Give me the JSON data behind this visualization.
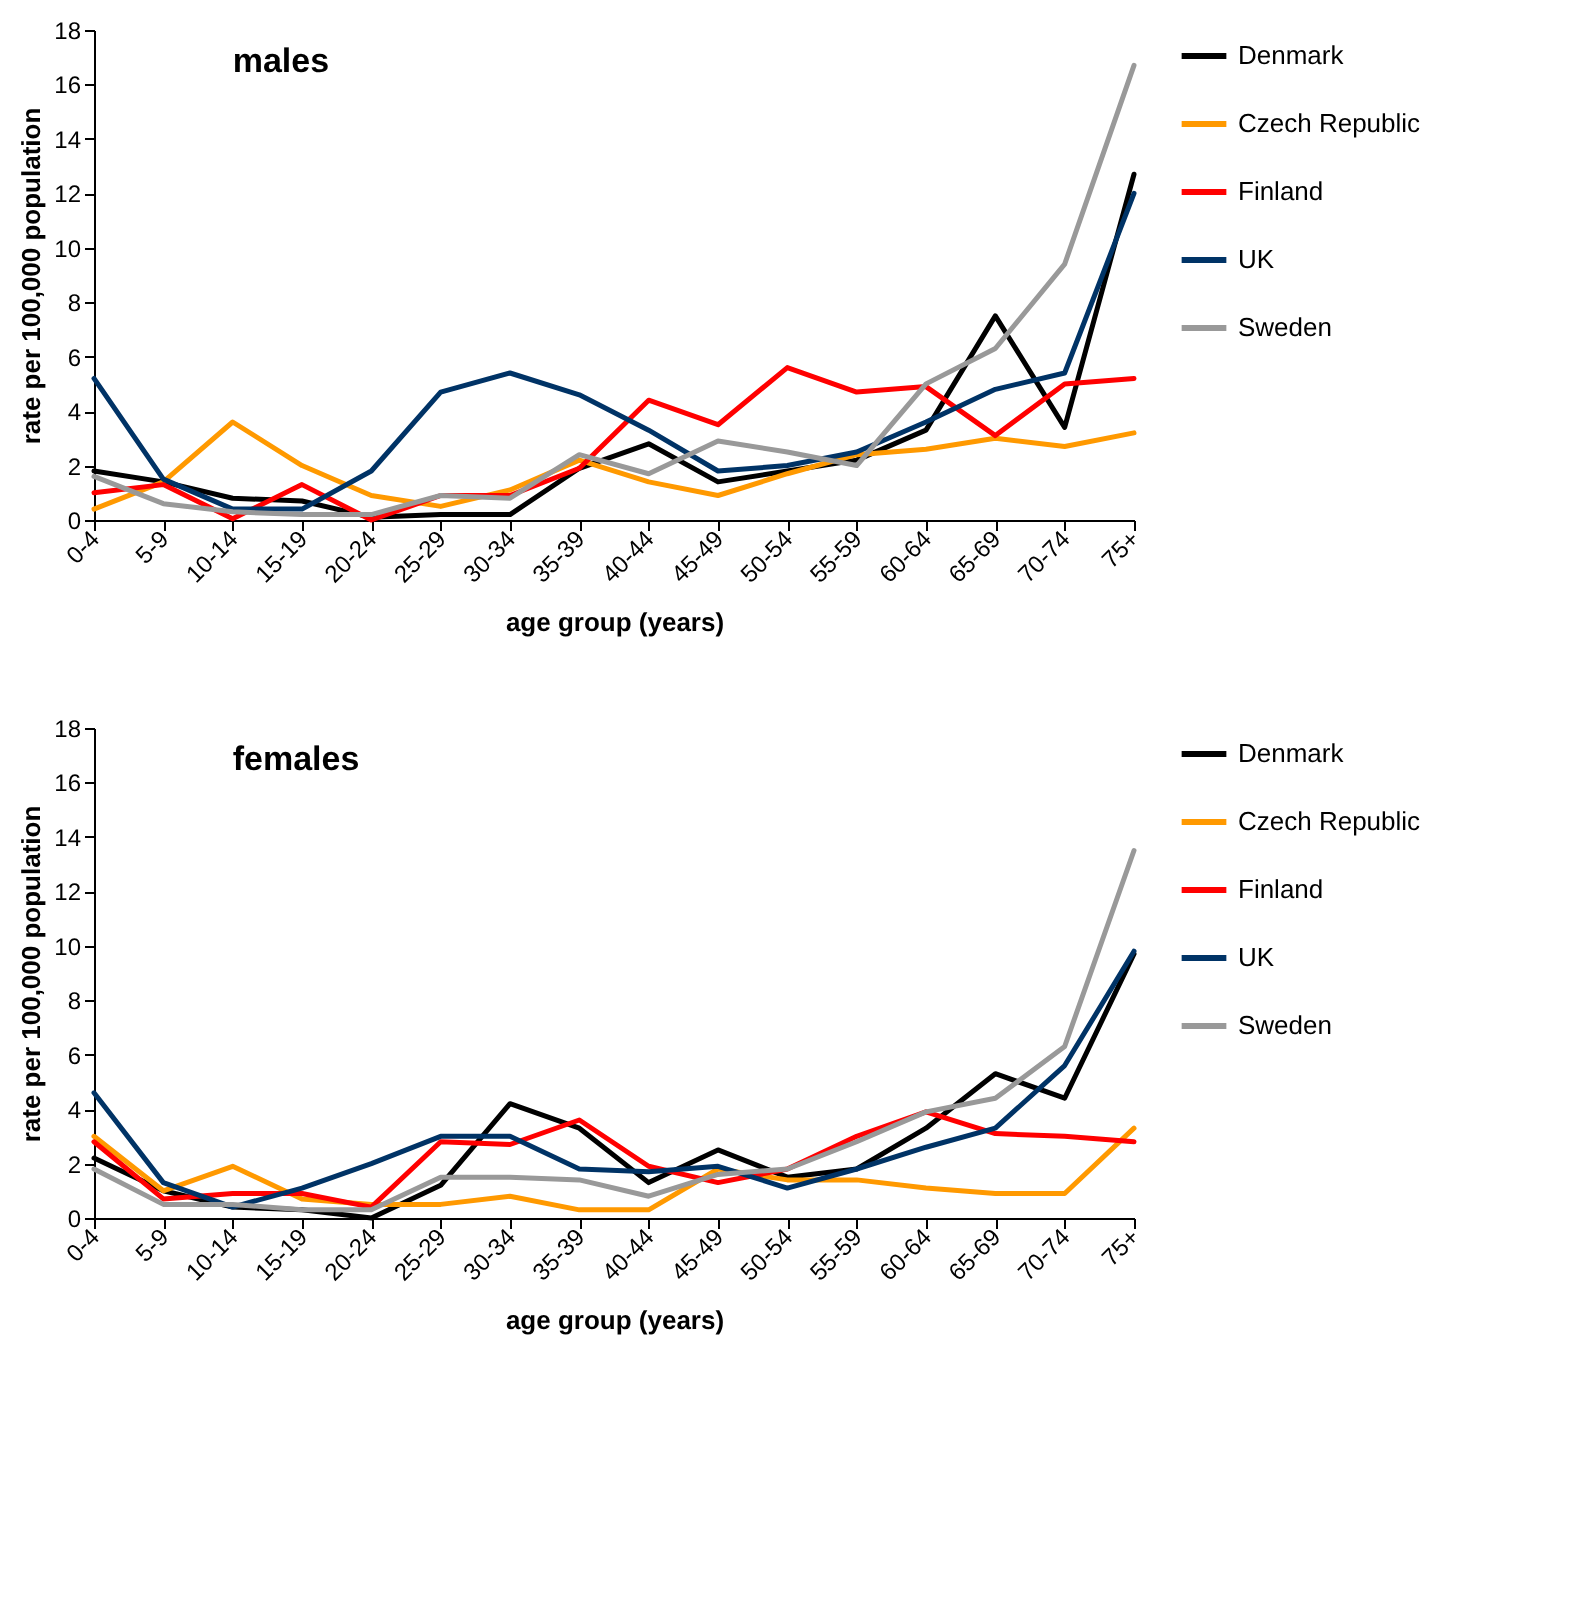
{
  "chart_data": [
    {
      "type": "line",
      "title": "males",
      "xlabel": "age group (years)",
      "ylabel": "rate per 100,000 population",
      "categories": [
        "0-4",
        "5-9",
        "10-14",
        "15-19",
        "20-24",
        "25-29",
        "30-34",
        "35-39",
        "40-44",
        "45-49",
        "50-54",
        "55-59",
        "60-64",
        "65-69",
        "70-74",
        "75+"
      ],
      "series": [
        {
          "name": "Denmark",
          "color": "#000000",
          "values": [
            1.8,
            1.4,
            0.8,
            0.7,
            0.1,
            0.2,
            0.2,
            1.9,
            2.8,
            1.4,
            1.8,
            2.2,
            3.3,
            7.5,
            3.4,
            12.7
          ]
        },
        {
          "name": "Czech Republic",
          "color": "#ff9900",
          "values": [
            0.4,
            1.4,
            3.6,
            2.0,
            0.9,
            0.5,
            1.1,
            2.2,
            1.4,
            0.9,
            1.7,
            2.4,
            2.6,
            3.0,
            2.7,
            3.2
          ]
        },
        {
          "name": "Finland",
          "color": "#ff0000",
          "values": [
            1.0,
            1.3,
            0.05,
            1.3,
            0.0,
            0.9,
            0.9,
            1.9,
            4.4,
            3.5,
            5.6,
            4.7,
            4.9,
            3.1,
            5.0,
            5.2
          ]
        },
        {
          "name": "UK",
          "color": "#003366",
          "values": [
            5.2,
            1.5,
            0.4,
            0.4,
            1.8,
            4.7,
            5.4,
            4.6,
            3.3,
            1.8,
            2.0,
            2.5,
            3.6,
            4.8,
            5.4,
            12.0
          ]
        },
        {
          "name": "Sweden",
          "color": "#999999",
          "values": [
            1.6,
            0.6,
            0.3,
            0.2,
            0.2,
            0.9,
            0.8,
            2.4,
            1.7,
            2.9,
            2.5,
            2.0,
            5.0,
            6.3,
            9.4,
            16.7
          ]
        }
      ],
      "ylim": [
        0,
        18
      ],
      "yticks": [
        0,
        2,
        4,
        6,
        8,
        10,
        12,
        14,
        16,
        18
      ],
      "grid": false,
      "legend": "top right",
      "marker": "none",
      "line_style": "solid"
    },
    {
      "type": "line",
      "title": "females",
      "xlabel": "age group (years)",
      "ylabel": "rate per 100,000 population",
      "categories": [
        "0-4",
        "5-9",
        "10-14",
        "15-19",
        "20-24",
        "25-29",
        "30-34",
        "35-39",
        "40-44",
        "45-49",
        "50-54",
        "55-59",
        "60-64",
        "65-69",
        "70-74",
        "75+"
      ],
      "series": [
        {
          "name": "Denmark",
          "color": "#000000",
          "values": [
            2.2,
            1.0,
            0.4,
            0.3,
            0.0,
            1.2,
            4.2,
            3.3,
            1.3,
            2.5,
            1.5,
            1.8,
            3.3,
            5.3,
            4.4,
            9.7
          ]
        },
        {
          "name": "Czech Republic",
          "color": "#ff9900",
          "values": [
            3.0,
            1.0,
            1.9,
            0.7,
            0.5,
            0.5,
            0.8,
            0.3,
            0.3,
            1.8,
            1.4,
            1.4,
            1.1,
            0.9,
            0.9,
            3.3
          ]
        },
        {
          "name": "Finland",
          "color": "#ff0000",
          "values": [
            2.8,
            0.7,
            0.9,
            0.9,
            0.4,
            2.8,
            2.7,
            3.6,
            1.9,
            1.3,
            1.8,
            3.0,
            3.9,
            3.1,
            3.0,
            2.8
          ]
        },
        {
          "name": "UK",
          "color": "#003366",
          "values": [
            4.6,
            1.3,
            0.4,
            1.1,
            2.0,
            3.0,
            3.0,
            1.8,
            1.7,
            1.9,
            1.1,
            1.8,
            2.6,
            3.3,
            5.6,
            9.8
          ]
        },
        {
          "name": "Sweden",
          "color": "#999999",
          "values": [
            1.8,
            0.5,
            0.5,
            0.3,
            0.3,
            1.5,
            1.5,
            1.4,
            0.8,
            1.6,
            1.8,
            2.8,
            3.9,
            4.4,
            6.3,
            13.5
          ]
        }
      ],
      "ylim": [
        0,
        18
      ],
      "yticks": [
        0,
        2,
        4,
        6,
        8,
        10,
        12,
        14,
        16,
        18
      ],
      "grid": false,
      "legend": "top right",
      "marker": "none",
      "line_style": "solid"
    }
  ]
}
